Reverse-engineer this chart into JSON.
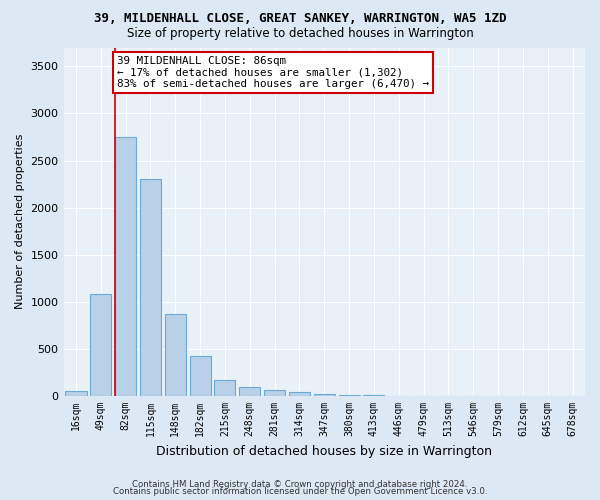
{
  "title": "39, MILDENHALL CLOSE, GREAT SANKEY, WARRINGTON, WA5 1ZD",
  "subtitle": "Size of property relative to detached houses in Warrington",
  "xlabel": "Distribution of detached houses by size in Warrington",
  "ylabel": "Number of detached properties",
  "bin_labels": [
    "16sqm",
    "49sqm",
    "82sqm",
    "115sqm",
    "148sqm",
    "182sqm",
    "215sqm",
    "248sqm",
    "281sqm",
    "314sqm",
    "347sqm",
    "380sqm",
    "413sqm",
    "446sqm",
    "479sqm",
    "513sqm",
    "546sqm",
    "579sqm",
    "612sqm",
    "645sqm",
    "678sqm"
  ],
  "bar_heights": [
    50,
    1080,
    2750,
    2300,
    870,
    420,
    170,
    100,
    65,
    40,
    22,
    12,
    7,
    4,
    3,
    2,
    1,
    1,
    0,
    0,
    0
  ],
  "bar_color": "#b8d0e8",
  "bar_edge_color": "#6aaad4",
  "red_line_bin_index": 2,
  "annotation_title": "39 MILDENHALL CLOSE: 86sqm",
  "annotation_line1": "← 17% of detached houses are smaller (1,302)",
  "annotation_line2": "83% of semi-detached houses are larger (6,470) →",
  "marker_line_color": "#cc0000",
  "ylim": [
    0,
    3700
  ],
  "yticks": [
    0,
    500,
    1000,
    1500,
    2000,
    2500,
    3000,
    3500
  ],
  "footer1": "Contains HM Land Registry data © Crown copyright and database right 2024.",
  "footer2": "Contains public sector information licensed under the Open Government Licence v3.0.",
  "bg_color": "#dce8f4",
  "plot_bg_color": "#e8f1f8",
  "grid_color": "#ffffff"
}
